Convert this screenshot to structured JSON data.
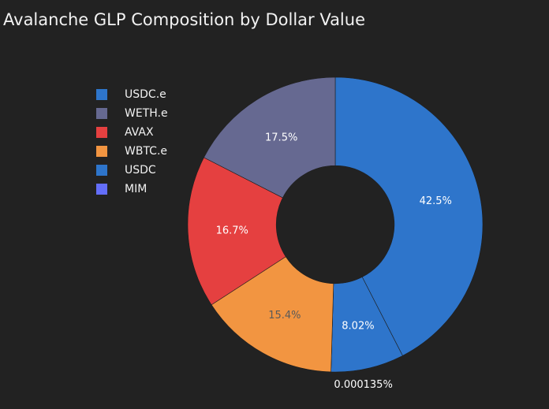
{
  "chart_data": {
    "type": "pie",
    "title": "Avalanche GLP Composition by Dollar Value",
    "hole": 0.4,
    "legend_position": "top-left",
    "slices": [
      {
        "label": "USDC.e",
        "percent": 42.5,
        "display": "42.5%",
        "color": "#2e75cb",
        "text_color": "#ffffff"
      },
      {
        "label": "USDC",
        "percent": 8.02,
        "display": "8.02%",
        "color": "#2e75cb",
        "text_color": "#ffffff"
      },
      {
        "label": "MIM",
        "percent": 0.000135,
        "display": "0.000135%",
        "color": "#636efa",
        "text_color": "#ffffff",
        "outside": true
      },
      {
        "label": "WBTC.e",
        "percent": 15.4,
        "display": "15.4%",
        "color": "#f29541",
        "text_color": "#5a5a5a"
      },
      {
        "label": "AVAX",
        "percent": 16.7,
        "display": "16.7%",
        "color": "#e54040",
        "text_color": "#ffffff"
      },
      {
        "label": "WETH.e",
        "percent": 17.5,
        "display": "17.5%",
        "color": "#666991",
        "text_color": "#ffffff"
      }
    ],
    "legend": [
      {
        "label": "USDC.e",
        "color": "#2e75cb"
      },
      {
        "label": "WETH.e",
        "color": "#666991"
      },
      {
        "label": "AVAX",
        "color": "#e54040"
      },
      {
        "label": "WBTC.e",
        "color": "#f29541"
      },
      {
        "label": "USDC",
        "color": "#2e75cb"
      },
      {
        "label": "MIM",
        "color": "#636efa"
      }
    ]
  }
}
